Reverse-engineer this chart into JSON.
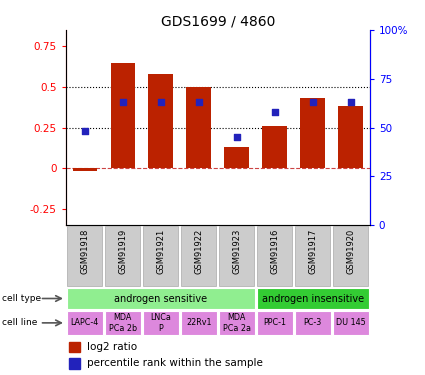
{
  "title": "GDS1699 / 4860",
  "samples": [
    "GSM91918",
    "GSM91919",
    "GSM91921",
    "GSM91922",
    "GSM91923",
    "GSM91916",
    "GSM91917",
    "GSM91920"
  ],
  "log2_ratio": [
    -0.02,
    0.65,
    0.58,
    0.5,
    0.13,
    0.26,
    0.43,
    0.38
  ],
  "percentile_rank": [
    48,
    63,
    63,
    63,
    45,
    58,
    63,
    63
  ],
  "cell_types": [
    {
      "label": "androgen sensitive",
      "start": 0,
      "end": 5,
      "color": "#90ee90"
    },
    {
      "label": "androgen insensitive",
      "start": 5,
      "end": 8,
      "color": "#33cc33"
    }
  ],
  "cell_lines": [
    "LAPC-4",
    "MDA\nPCa 2b",
    "LNCa\nP",
    "22Rv1",
    "MDA\nPCa 2a",
    "PPC-1",
    "PC-3",
    "DU 145"
  ],
  "cell_line_color": "#dd88dd",
  "bar_color": "#bb2200",
  "dot_color": "#2222bb",
  "ylim_left": [
    -0.35,
    0.85
  ],
  "ylim_right": [
    0,
    100
  ],
  "yticks_left": [
    -0.25,
    0,
    0.25,
    0.5,
    0.75
  ],
  "yticks_right": [
    0,
    25,
    50,
    75,
    100
  ],
  "ytick_labels_right": [
    "0",
    "25",
    "50",
    "75",
    "100%"
  ],
  "hline_values": [
    0.25,
    0.5
  ],
  "bar_width": 0.65,
  "gsm_box_color": "#cccccc",
  "gsm_box_edge": "#aaaaaa"
}
